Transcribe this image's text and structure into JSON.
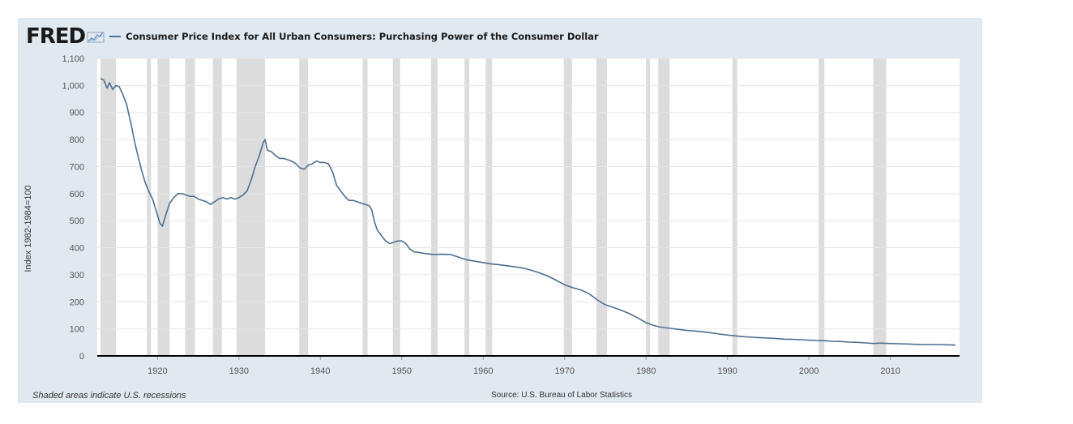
{
  "header": {
    "logo_text": "FRED",
    "title": "Consumer Price Index for All Urban Consumers: Purchasing Power of the Consumer Dollar"
  },
  "footer": {
    "recession_note": "Shaded areas indicate U.S. recessions",
    "source": "Source: U.S. Bureau of Labor Statistics"
  },
  "colors": {
    "line": "#4f6f91",
    "recession": "#dcdcdc",
    "plot_bg": "#ffffff",
    "frame_bg": "#e1e9f0",
    "grid": "#e6e6e6",
    "axis": "#000000"
  },
  "chart_data": {
    "type": "line",
    "title": "Consumer Price Index for All Urban Consumers: Purchasing Power of the Consumer Dollar",
    "xlabel": "",
    "ylabel": "Index 1982-1984=100",
    "xlim": [
      1912.6,
      2018.5
    ],
    "ylim": [
      0,
      1100
    ],
    "x_ticks": [
      1920,
      1930,
      1940,
      1950,
      1960,
      1970,
      1980,
      1990,
      2000,
      2010
    ],
    "y_ticks": [
      0,
      100,
      200,
      300,
      400,
      500,
      600,
      700,
      800,
      900,
      1000,
      1100
    ],
    "y_tick_labels": [
      "0",
      "100",
      "200",
      "300",
      "400",
      "500",
      "600",
      "700",
      "800",
      "900",
      "1,000",
      "1,100"
    ],
    "grid": true,
    "recessions": [
      [
        1913.0,
        1914.9
      ],
      [
        1918.7,
        1919.2
      ],
      [
        1920.0,
        1921.5
      ],
      [
        1923.4,
        1924.6
      ],
      [
        1926.8,
        1927.9
      ],
      [
        1929.7,
        1933.2
      ],
      [
        1937.4,
        1938.5
      ],
      [
        1945.2,
        1945.8
      ],
      [
        1948.9,
        1949.8
      ],
      [
        1953.6,
        1954.4
      ],
      [
        1957.7,
        1958.3
      ],
      [
        1960.3,
        1961.1
      ],
      [
        1969.9,
        1970.9
      ],
      [
        1973.9,
        1975.2
      ],
      [
        1980.0,
        1980.5
      ],
      [
        1981.5,
        1982.9
      ],
      [
        1990.6,
        1991.2
      ],
      [
        2001.2,
        2001.9
      ],
      [
        2007.9,
        2009.5
      ]
    ],
    "series": [
      {
        "values": [
          [
            1913.0,
            1025
          ],
          [
            1913.4,
            1020
          ],
          [
            1913.8,
            990
          ],
          [
            1914.1,
            1010
          ],
          [
            1914.5,
            985
          ],
          [
            1914.9,
            1000
          ],
          [
            1915.3,
            995
          ],
          [
            1915.7,
            970
          ],
          [
            1916.2,
            930
          ],
          [
            1916.8,
            850
          ],
          [
            1917.2,
            790
          ],
          [
            1917.6,
            740
          ],
          [
            1918.0,
            690
          ],
          [
            1918.5,
            640
          ],
          [
            1918.9,
            610
          ],
          [
            1919.4,
            580
          ],
          [
            1919.8,
            540
          ],
          [
            1920.3,
            490
          ],
          [
            1920.6,
            480
          ],
          [
            1921.0,
            520
          ],
          [
            1921.5,
            565
          ],
          [
            1922.0,
            585
          ],
          [
            1922.5,
            600
          ],
          [
            1923.0,
            600
          ],
          [
            1923.5,
            595
          ],
          [
            1924.0,
            590
          ],
          [
            1924.5,
            590
          ],
          [
            1925.0,
            580
          ],
          [
            1925.5,
            575
          ],
          [
            1926.0,
            570
          ],
          [
            1926.5,
            560
          ],
          [
            1927.0,
            570
          ],
          [
            1927.5,
            580
          ],
          [
            1928.0,
            585
          ],
          [
            1928.5,
            580
          ],
          [
            1929.0,
            585
          ],
          [
            1929.5,
            580
          ],
          [
            1930.0,
            585
          ],
          [
            1930.5,
            595
          ],
          [
            1931.0,
            610
          ],
          [
            1931.5,
            650
          ],
          [
            1932.0,
            700
          ],
          [
            1932.5,
            740
          ],
          [
            1933.0,
            790
          ],
          [
            1933.2,
            800
          ],
          [
            1933.5,
            760
          ],
          [
            1934.0,
            755
          ],
          [
            1934.5,
            740
          ],
          [
            1935.0,
            730
          ],
          [
            1935.5,
            730
          ],
          [
            1936.0,
            725
          ],
          [
            1936.5,
            720
          ],
          [
            1937.0,
            710
          ],
          [
            1937.5,
            695
          ],
          [
            1938.0,
            690
          ],
          [
            1938.5,
            705
          ],
          [
            1939.0,
            710
          ],
          [
            1939.5,
            720
          ],
          [
            1940.0,
            715
          ],
          [
            1940.5,
            715
          ],
          [
            1941.0,
            710
          ],
          [
            1941.5,
            680
          ],
          [
            1942.0,
            630
          ],
          [
            1942.5,
            610
          ],
          [
            1943.0,
            590
          ],
          [
            1943.5,
            575
          ],
          [
            1944.0,
            575
          ],
          [
            1944.5,
            570
          ],
          [
            1945.0,
            565
          ],
          [
            1945.5,
            560
          ],
          [
            1946.0,
            555
          ],
          [
            1946.3,
            540
          ],
          [
            1946.7,
            490
          ],
          [
            1947.0,
            465
          ],
          [
            1947.5,
            445
          ],
          [
            1948.0,
            425
          ],
          [
            1948.5,
            415
          ],
          [
            1949.0,
            420
          ],
          [
            1949.5,
            425
          ],
          [
            1950.0,
            425
          ],
          [
            1950.5,
            415
          ],
          [
            1951.0,
            395
          ],
          [
            1951.5,
            385
          ],
          [
            1952.0,
            383
          ],
          [
            1952.5,
            380
          ],
          [
            1953.0,
            378
          ],
          [
            1954.0,
            375
          ],
          [
            1955.0,
            376
          ],
          [
            1956.0,
            375
          ],
          [
            1957.0,
            365
          ],
          [
            1958.0,
            355
          ],
          [
            1959.0,
            350
          ],
          [
            1960.0,
            345
          ],
          [
            1961.0,
            340
          ],
          [
            1962.0,
            337
          ],
          [
            1963.0,
            333
          ],
          [
            1964.0,
            329
          ],
          [
            1965.0,
            324
          ],
          [
            1966.0,
            316
          ],
          [
            1967.0,
            306
          ],
          [
            1968.0,
            294
          ],
          [
            1969.0,
            279
          ],
          [
            1970.0,
            263
          ],
          [
            1971.0,
            252
          ],
          [
            1972.0,
            244
          ],
          [
            1973.0,
            230
          ],
          [
            1974.0,
            207
          ],
          [
            1975.0,
            189
          ],
          [
            1976.0,
            179
          ],
          [
            1977.0,
            168
          ],
          [
            1978.0,
            156
          ],
          [
            1979.0,
            140
          ],
          [
            1980.0,
            123
          ],
          [
            1981.0,
            112
          ],
          [
            1982.0,
            105
          ],
          [
            1983.0,
            102
          ],
          [
            1984.0,
            98
          ],
          [
            1985.0,
            94
          ],
          [
            1986.0,
            92
          ],
          [
            1987.0,
            89
          ],
          [
            1988.0,
            85
          ],
          [
            1989.0,
            81
          ],
          [
            1990.0,
            77
          ],
          [
            1991.0,
            74
          ],
          [
            1992.0,
            71
          ],
          [
            1993.0,
            69
          ],
          [
            1994.0,
            67
          ],
          [
            1995.0,
            66
          ],
          [
            1996.0,
            64
          ],
          [
            1997.0,
            62
          ],
          [
            1998.0,
            61
          ],
          [
            1999.0,
            60
          ],
          [
            2000.0,
            58
          ],
          [
            2001.0,
            57
          ],
          [
            2002.0,
            56
          ],
          [
            2003.0,
            54
          ],
          [
            2004.0,
            53
          ],
          [
            2005.0,
            51
          ],
          [
            2006.0,
            50
          ],
          [
            2007.0,
            48
          ],
          [
            2008.0,
            46
          ],
          [
            2008.6,
            47
          ],
          [
            2009.0,
            47
          ],
          [
            2010.0,
            46
          ],
          [
            2011.0,
            45
          ],
          [
            2012.0,
            44
          ],
          [
            2013.0,
            43
          ],
          [
            2014.0,
            42
          ],
          [
            2015.0,
            42
          ],
          [
            2016.0,
            42
          ],
          [
            2017.0,
            41
          ],
          [
            2018.0,
            40
          ]
        ]
      }
    ]
  }
}
